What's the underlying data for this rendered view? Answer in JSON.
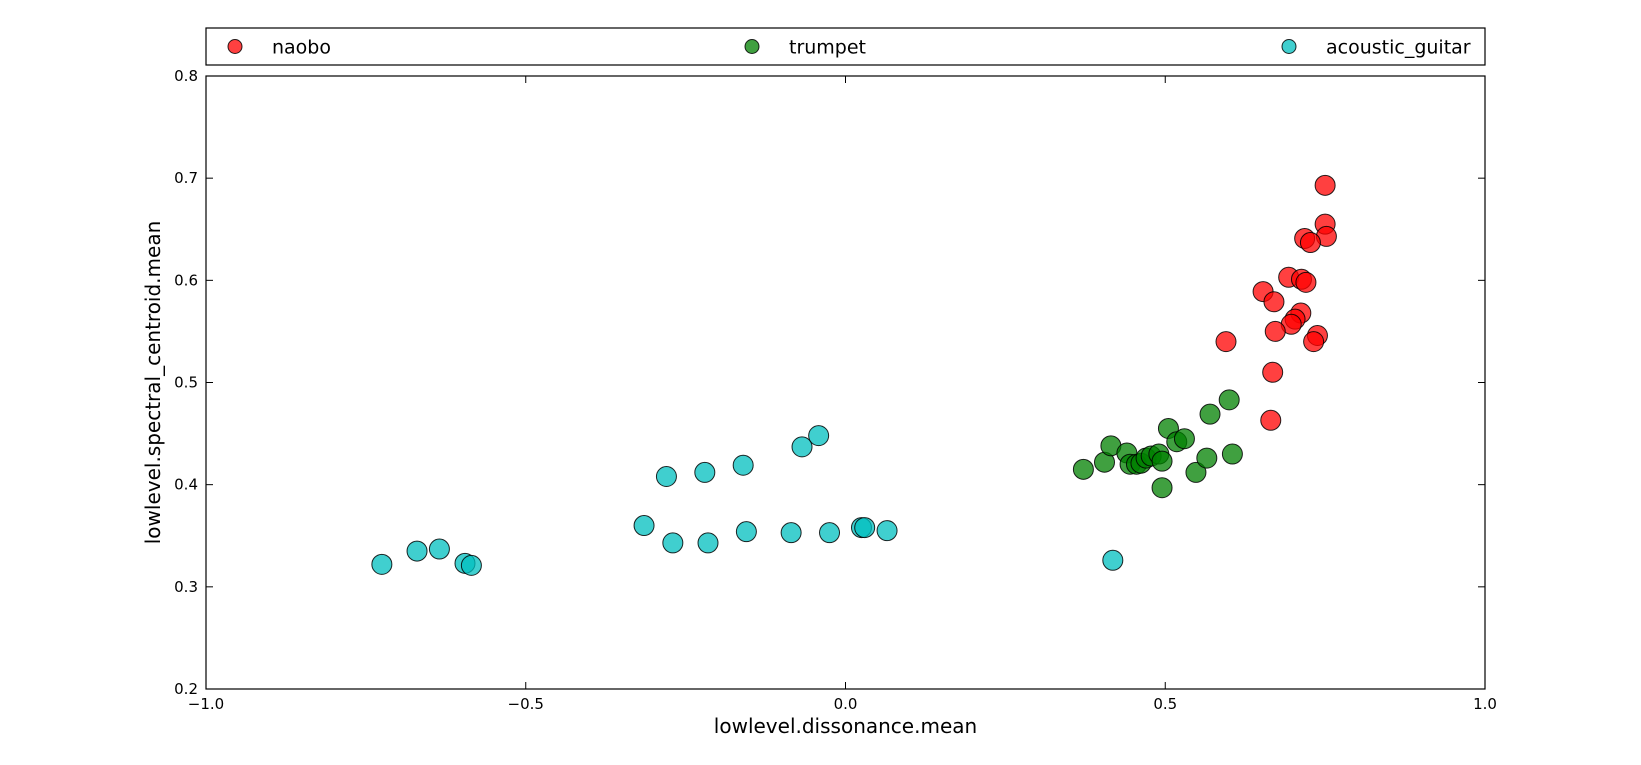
{
  "chart_data": {
    "type": "scatter",
    "xlabel": "lowlevel.dissonance.mean",
    "ylabel": "lowlevel.spectral_centroid.mean",
    "xlim": [
      -1.0,
      1.0
    ],
    "ylim": [
      0.2,
      0.8
    ],
    "x_ticks": [
      -1.0,
      -0.5,
      0.0,
      0.5,
      1.0
    ],
    "x_tick_labels": [
      "−1.0",
      "−0.5",
      "0.0",
      "0.5",
      "1.0"
    ],
    "y_ticks": [
      0.2,
      0.3,
      0.4,
      0.5,
      0.6,
      0.7,
      0.8
    ],
    "y_tick_labels": [
      "0.2",
      "0.3",
      "0.4",
      "0.5",
      "0.6",
      "0.7",
      "0.8"
    ],
    "grid": false,
    "legend_position": "top, spanning full width",
    "series": [
      {
        "name": "naobo",
        "color": "#ff0000",
        "points": [
          [
            0.75,
            0.693
          ],
          [
            0.75,
            0.655
          ],
          [
            0.752,
            0.643
          ],
          [
            0.718,
            0.641
          ],
          [
            0.727,
            0.637
          ],
          [
            0.693,
            0.603
          ],
          [
            0.713,
            0.601
          ],
          [
            0.72,
            0.598
          ],
          [
            0.653,
            0.589
          ],
          [
            0.67,
            0.579
          ],
          [
            0.712,
            0.568
          ],
          [
            0.703,
            0.562
          ],
          [
            0.697,
            0.557
          ],
          [
            0.672,
            0.55
          ],
          [
            0.738,
            0.546
          ],
          [
            0.732,
            0.54
          ],
          [
            0.595,
            0.54
          ],
          [
            0.668,
            0.51
          ],
          [
            0.665,
            0.463
          ]
        ]
      },
      {
        "name": "trumpet",
        "color": "#008000",
        "points": [
          [
            0.372,
            0.415
          ],
          [
            0.405,
            0.422
          ],
          [
            0.415,
            0.438
          ],
          [
            0.44,
            0.431
          ],
          [
            0.445,
            0.42
          ],
          [
            0.455,
            0.42
          ],
          [
            0.462,
            0.421
          ],
          [
            0.47,
            0.426
          ],
          [
            0.478,
            0.428
          ],
          [
            0.49,
            0.43
          ],
          [
            0.495,
            0.423
          ],
          [
            0.495,
            0.397
          ],
          [
            0.505,
            0.455
          ],
          [
            0.518,
            0.442
          ],
          [
            0.53,
            0.445
          ],
          [
            0.548,
            0.412
          ],
          [
            0.565,
            0.426
          ],
          [
            0.57,
            0.469
          ],
          [
            0.6,
            0.483
          ],
          [
            0.605,
            0.43
          ]
        ]
      },
      {
        "name": "acoustic_guitar",
        "color": "#00bfbf",
        "points": [
          [
            -0.725,
            0.322
          ],
          [
            -0.67,
            0.335
          ],
          [
            -0.635,
            0.337
          ],
          [
            -0.595,
            0.323
          ],
          [
            -0.585,
            0.321
          ],
          [
            -0.315,
            0.36
          ],
          [
            -0.28,
            0.408
          ],
          [
            -0.27,
            0.343
          ],
          [
            -0.22,
            0.412
          ],
          [
            -0.215,
            0.343
          ],
          [
            -0.16,
            0.419
          ],
          [
            -0.155,
            0.354
          ],
          [
            -0.085,
            0.353
          ],
          [
            -0.068,
            0.437
          ],
          [
            -0.042,
            0.448
          ],
          [
            -0.025,
            0.353
          ],
          [
            0.025,
            0.358
          ],
          [
            0.03,
            0.358
          ],
          [
            0.065,
            0.355
          ],
          [
            0.418,
            0.326
          ]
        ]
      }
    ]
  }
}
